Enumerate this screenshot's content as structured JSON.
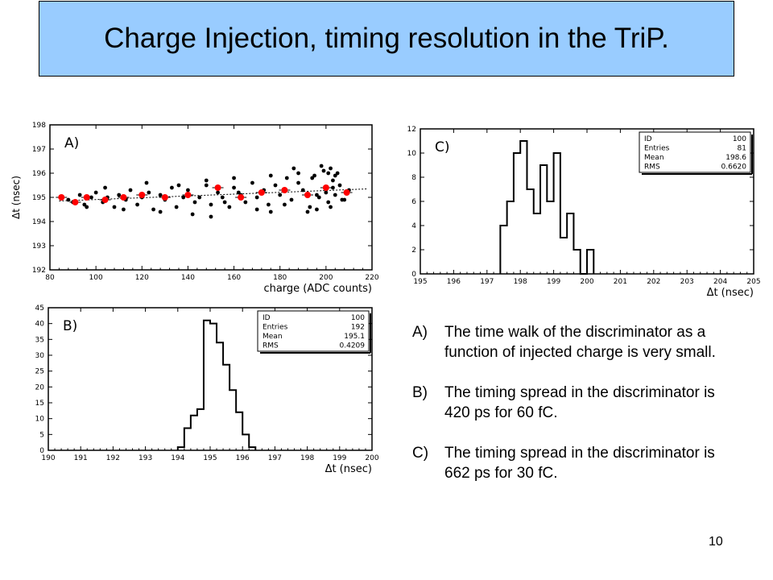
{
  "slide": {
    "title": "Charge Injection, timing resolution in the TriP.",
    "page_number": "10"
  },
  "notes": [
    {
      "letter": "A)",
      "text": "The time walk of  the discriminator as a function of injected charge is very small."
    },
    {
      "letter": "B)",
      "text": "The timing spread in the discriminator is 420 ps for 60 fC."
    },
    {
      "letter": "C)",
      "text": "The timing spread in the discriminator is 662 ps for 30 fC."
    }
  ],
  "chart_data": [
    {
      "panel": "A)",
      "type": "scatter",
      "xlabel": "charge (ADC counts)",
      "ylabel": "Δt (nsec)",
      "xlim": [
        80,
        220
      ],
      "ylim": [
        192,
        198
      ],
      "xticks": [
        80,
        100,
        120,
        140,
        160,
        180,
        200,
        220
      ],
      "yticks": [
        192,
        193,
        194,
        195,
        196,
        197,
        198
      ],
      "grid": false,
      "fit_line": {
        "x": [
          84,
          218
        ],
        "y": [
          194.85,
          195.35
        ]
      },
      "series": [
        {
          "color": "#000000",
          "x": [
            85,
            88,
            90,
            93,
            95,
            98,
            100,
            103,
            105,
            108,
            110,
            113,
            115,
            118,
            120,
            123,
            125,
            128,
            130,
            133,
            135,
            138,
            140,
            143,
            145,
            148,
            150,
            153,
            155,
            158,
            160,
            163,
            165,
            168,
            170,
            173,
            175,
            178,
            180,
            183,
            185,
            188,
            190,
            193,
            195,
            197,
            199,
            200,
            201,
            202,
            203,
            204,
            205,
            206,
            208,
            210,
            96,
            104,
            112,
            122,
            128,
            136,
            142,
            148,
            156,
            162,
            170,
            176,
            182,
            188,
            192,
            194,
            196,
            198,
            200,
            202,
            204,
            150,
            160,
            176,
            186,
            196,
            201,
            203,
            207
          ],
          "y": [
            195.0,
            194.9,
            194.8,
            195.1,
            194.7,
            195.0,
            195.2,
            194.8,
            195.0,
            194.6,
            195.1,
            194.9,
            195.3,
            194.7,
            195.0,
            195.2,
            194.5,
            195.1,
            194.9,
            195.4,
            194.6,
            195.0,
            195.3,
            194.8,
            195.0,
            195.5,
            194.7,
            195.2,
            195.0,
            194.6,
            195.4,
            195.1,
            194.8,
            195.6,
            195.0,
            195.3,
            194.7,
            195.5,
            195.1,
            195.8,
            194.9,
            195.6,
            195.3,
            194.6,
            195.9,
            195.0,
            196.1,
            195.4,
            194.8,
            196.2,
            195.7,
            195.1,
            196.0,
            195.5,
            194.9,
            195.3,
            194.6,
            195.4,
            194.5,
            195.6,
            194.4,
            195.5,
            194.3,
            195.7,
            194.8,
            195.2,
            194.5,
            195.9,
            194.7,
            196.0,
            194.4,
            195.8,
            194.5,
            196.3,
            195.2,
            194.6,
            195.9,
            194.2,
            195.8,
            194.4,
            196.2,
            195.1,
            196.0,
            195.4,
            194.9
          ]
        },
        {
          "color": "#ff0000",
          "x": [
            85,
            91,
            96,
            104,
            112,
            120,
            130,
            140,
            153,
            163,
            172,
            182,
            192,
            200,
            209
          ],
          "y": [
            195.0,
            194.8,
            195.0,
            194.9,
            195.0,
            195.1,
            195.0,
            195.1,
            195.4,
            195.0,
            195.2,
            195.3,
            195.1,
            195.4,
            195.2
          ]
        }
      ]
    },
    {
      "panel": "B)",
      "type": "bar",
      "xlabel": "Δt (nsec)",
      "ylabel": "",
      "xlim": [
        190,
        200
      ],
      "ylim": [
        0,
        45
      ],
      "xticks": [
        190,
        191,
        192,
        193,
        194,
        195,
        196,
        197,
        198,
        199,
        200
      ],
      "yticks": [
        0,
        5,
        10,
        15,
        20,
        25,
        30,
        35,
        40,
        45
      ],
      "bin_width": 0.2,
      "bin_start": [
        194.0,
        194.2,
        194.4,
        194.6,
        194.8,
        195.0,
        195.2,
        195.4,
        195.6,
        195.8,
        196.0,
        196.2
      ],
      "values": [
        1,
        7,
        11,
        13,
        41,
        40,
        34,
        27,
        19,
        12,
        5,
        1
      ],
      "stats": {
        "ID": "100",
        "Entries": "192",
        "Mean": "195.1",
        "RMS": "0.4209"
      }
    },
    {
      "panel": "C)",
      "type": "bar",
      "xlabel": "Δt (nsec)",
      "ylabel": "",
      "xlim": [
        195,
        205
      ],
      "ylim": [
        0,
        12
      ],
      "xticks": [
        195,
        196,
        197,
        198,
        199,
        200,
        201,
        202,
        203,
        204,
        205
      ],
      "yticks": [
        0,
        2,
        4,
        6,
        8,
        10,
        12
      ],
      "bin_width": 0.2,
      "bin_start": [
        197.4,
        197.6,
        197.8,
        198.0,
        198.2,
        198.4,
        198.6,
        198.8,
        199.0,
        199.2,
        199.4,
        199.6,
        199.8,
        200.0
      ],
      "values": [
        4,
        6,
        10,
        11,
        7,
        5,
        9,
        6,
        10,
        3,
        5,
        2,
        0,
        2
      ],
      "stats": {
        "ID": "100",
        "Entries": "81",
        "Mean": "198.6",
        "RMS": "0.6620"
      }
    }
  ]
}
